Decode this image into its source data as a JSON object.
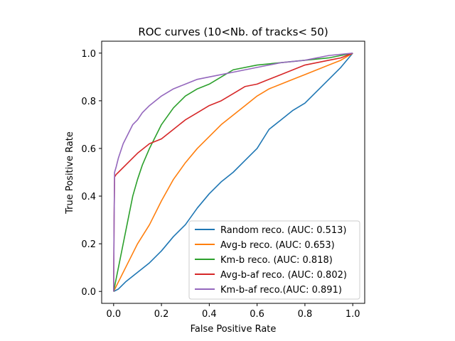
{
  "chart_data": {
    "type": "line",
    "title": "ROC curves (10<Nb. of tracks< 50)",
    "xlabel": "False Positive Rate",
    "ylabel": "True Positive Rate",
    "xlim": [
      -0.05,
      1.05
    ],
    "ylim": [
      -0.05,
      1.05
    ],
    "xticks": [
      "0.0",
      "0.2",
      "0.4",
      "0.6",
      "0.8",
      "1.0"
    ],
    "yticks": [
      "0.0",
      "0.2",
      "0.4",
      "0.6",
      "0.8",
      "1.0"
    ],
    "grid": false,
    "legend_position": "lower-right",
    "series": [
      {
        "name": "Random reco. (AUC: 0.513)",
        "color": "#1f77b4",
        "x": [
          0.0,
          0.02,
          0.05,
          0.1,
          0.15,
          0.2,
          0.25,
          0.3,
          0.35,
          0.4,
          0.45,
          0.5,
          0.55,
          0.6,
          0.65,
          0.7,
          0.75,
          0.8,
          0.85,
          0.9,
          0.95,
          1.0
        ],
        "y": [
          0.0,
          0.01,
          0.04,
          0.08,
          0.12,
          0.17,
          0.23,
          0.28,
          0.35,
          0.41,
          0.46,
          0.5,
          0.55,
          0.6,
          0.68,
          0.72,
          0.76,
          0.79,
          0.84,
          0.89,
          0.94,
          1.0
        ]
      },
      {
        "name": "Avg-b reco. (AUC: 0.653)",
        "color": "#ff7f0e",
        "x": [
          0.0,
          0.02,
          0.05,
          0.08,
          0.1,
          0.15,
          0.2,
          0.25,
          0.3,
          0.35,
          0.4,
          0.45,
          0.5,
          0.55,
          0.6,
          0.65,
          0.7,
          0.75,
          0.8,
          0.85,
          0.9,
          0.95,
          1.0
        ],
        "y": [
          0.0,
          0.04,
          0.1,
          0.16,
          0.2,
          0.28,
          0.38,
          0.47,
          0.54,
          0.6,
          0.65,
          0.7,
          0.74,
          0.78,
          0.82,
          0.85,
          0.87,
          0.89,
          0.91,
          0.93,
          0.95,
          0.97,
          1.0
        ]
      },
      {
        "name": "Km-b reco. (AUC: 0.818)",
        "color": "#2ca02c",
        "x": [
          0.0,
          0.01,
          0.02,
          0.04,
          0.06,
          0.08,
          0.1,
          0.12,
          0.15,
          0.18,
          0.2,
          0.25,
          0.3,
          0.35,
          0.4,
          0.45,
          0.5,
          0.6,
          0.7,
          0.8,
          0.9,
          1.0
        ],
        "y": [
          0.0,
          0.05,
          0.1,
          0.2,
          0.3,
          0.4,
          0.47,
          0.53,
          0.6,
          0.66,
          0.7,
          0.77,
          0.82,
          0.85,
          0.87,
          0.9,
          0.93,
          0.95,
          0.96,
          0.97,
          0.98,
          1.0
        ]
      },
      {
        "name": "Avg-b-af reco. (AUC: 0.802)",
        "color": "#d62728",
        "x": [
          0.0,
          0.002,
          0.004,
          0.01,
          0.02,
          0.05,
          0.1,
          0.15,
          0.2,
          0.25,
          0.3,
          0.35,
          0.4,
          0.45,
          0.5,
          0.55,
          0.6,
          0.65,
          0.7,
          0.75,
          0.8,
          0.85,
          0.9,
          0.95,
          1.0
        ],
        "y": [
          0.0,
          0.3,
          0.48,
          0.49,
          0.5,
          0.53,
          0.58,
          0.62,
          0.64,
          0.68,
          0.72,
          0.75,
          0.78,
          0.8,
          0.83,
          0.86,
          0.87,
          0.89,
          0.91,
          0.93,
          0.95,
          0.96,
          0.97,
          0.98,
          1.0
        ]
      },
      {
        "name": "Km-b-af reco.(AUC: 0.891)",
        "color": "#9467bd",
        "x": [
          0.0,
          0.002,
          0.004,
          0.01,
          0.02,
          0.04,
          0.06,
          0.08,
          0.1,
          0.12,
          0.15,
          0.2,
          0.25,
          0.3,
          0.35,
          0.4,
          0.5,
          0.6,
          0.7,
          0.8,
          0.9,
          1.0
        ],
        "y": [
          0.0,
          0.3,
          0.5,
          0.52,
          0.56,
          0.62,
          0.66,
          0.7,
          0.72,
          0.75,
          0.78,
          0.82,
          0.85,
          0.87,
          0.89,
          0.9,
          0.92,
          0.94,
          0.96,
          0.97,
          0.99,
          1.0
        ]
      }
    ]
  }
}
